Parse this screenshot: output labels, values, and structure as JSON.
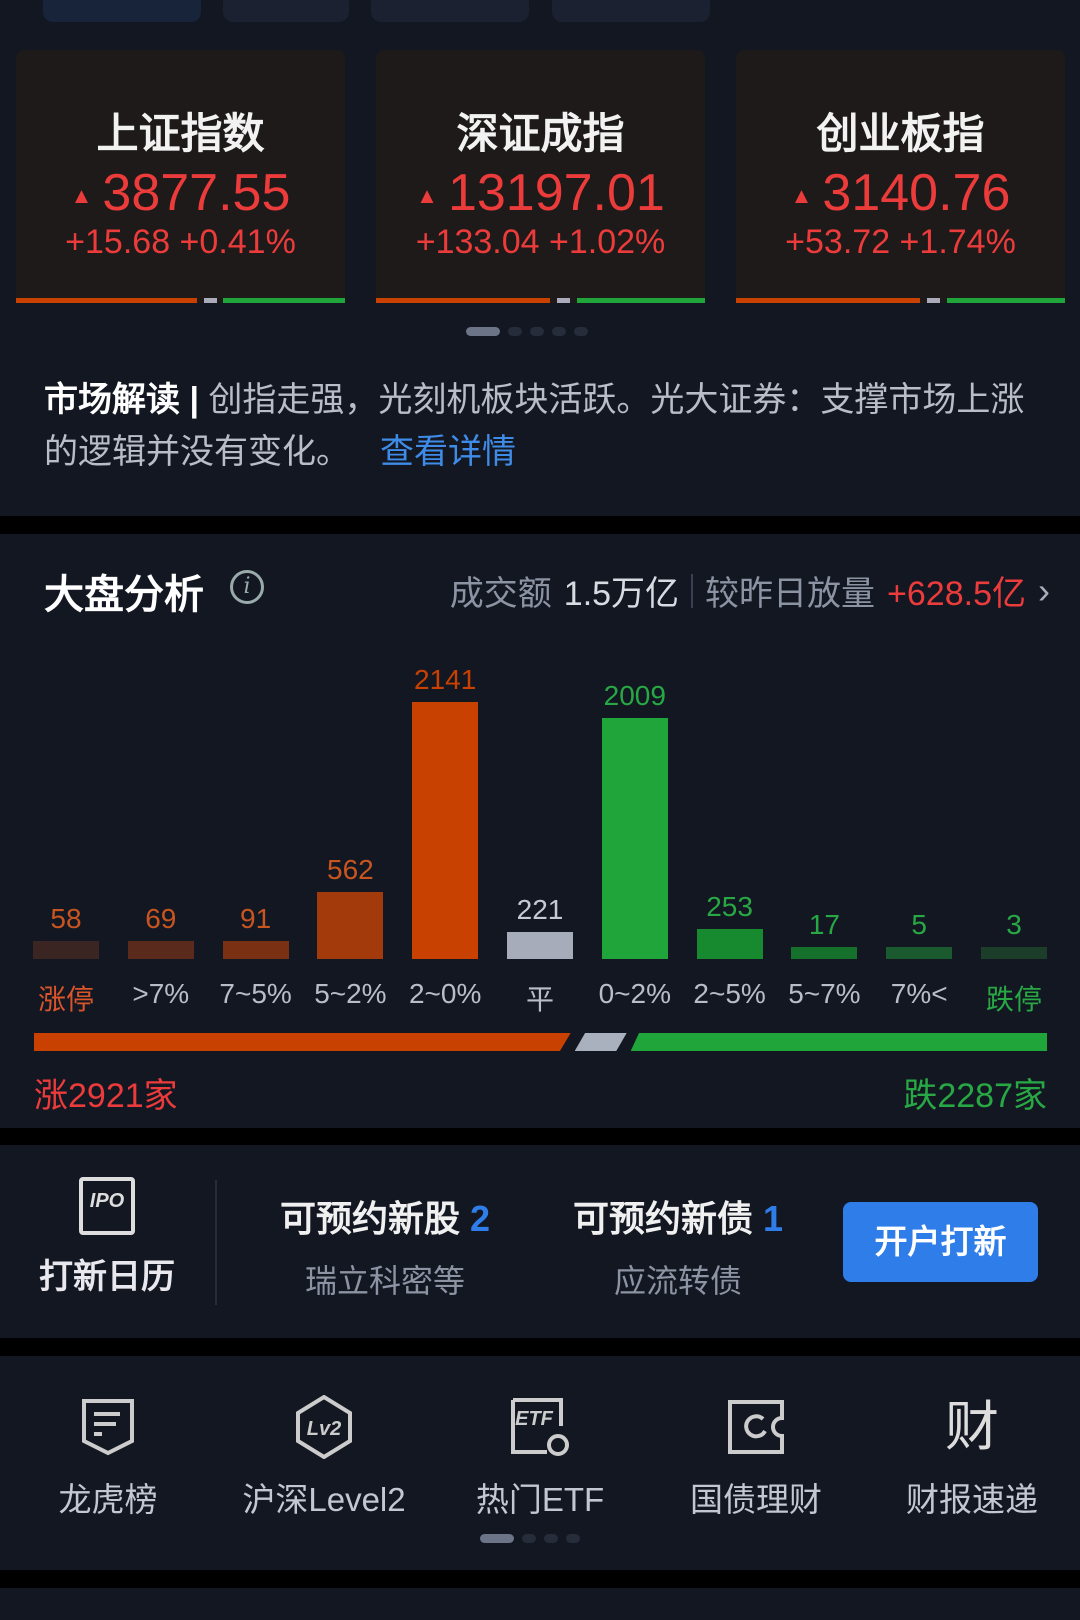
{
  "indices": [
    {
      "name": "上证指数",
      "price": "3877.55",
      "change": "+15.68 +0.41%"
    },
    {
      "name": "深证成指",
      "price": "13197.01",
      "change": "+133.04 +1.02%"
    },
    {
      "name": "创业板指",
      "price": "3140.76",
      "change": "+53.72 +1.74%"
    }
  ],
  "colors": {
    "up": "#ec3b3b",
    "down": "#27a844",
    "accent": "#2f7de9"
  },
  "market_note": {
    "title": "市场解读",
    "text": "创指走强，光刻机板块活跃。光大证券：支撑市场上涨的逻辑并没有变化。",
    "link": "查看详情"
  },
  "analysis": {
    "title": "大盘分析",
    "turnover_label": "成交额",
    "turnover": "1.5万亿",
    "compare_label": "较昨日放量",
    "compare": "+628.5亿",
    "up_count": "涨2921家",
    "down_count": "跌2287家"
  },
  "chart_data": {
    "type": "bar",
    "categories": [
      "涨停",
      ">7%",
      "7~5%",
      "5~2%",
      "2~0%",
      "平",
      "0~2%",
      "2~5%",
      "5~7%",
      "7%<",
      "跌停"
    ],
    "values": [
      58,
      69,
      91,
      562,
      2141,
      221,
      2009,
      253,
      17,
      5,
      3
    ],
    "up_ratio": 0.56
  },
  "ipo": {
    "calendar": "打新日历",
    "stock_label": "可预约新股",
    "stock_count": "2",
    "stock_names": "瑞立科密等",
    "bond_label": "可预约新债",
    "bond_count": "1",
    "bond_names": "应流转债",
    "button": "开户打新"
  },
  "tools": [
    {
      "label": "龙虎榜",
      "icon": "list-shield-icon"
    },
    {
      "label": "沪深Level2",
      "icon": "lv2-hexagon-icon"
    },
    {
      "label": "热门ETF",
      "icon": "etf-icon"
    },
    {
      "label": "国债理财",
      "icon": "bond-ticket-icon"
    },
    {
      "label": "财报速递",
      "icon": "cai-icon",
      "glyph": "财"
    }
  ]
}
